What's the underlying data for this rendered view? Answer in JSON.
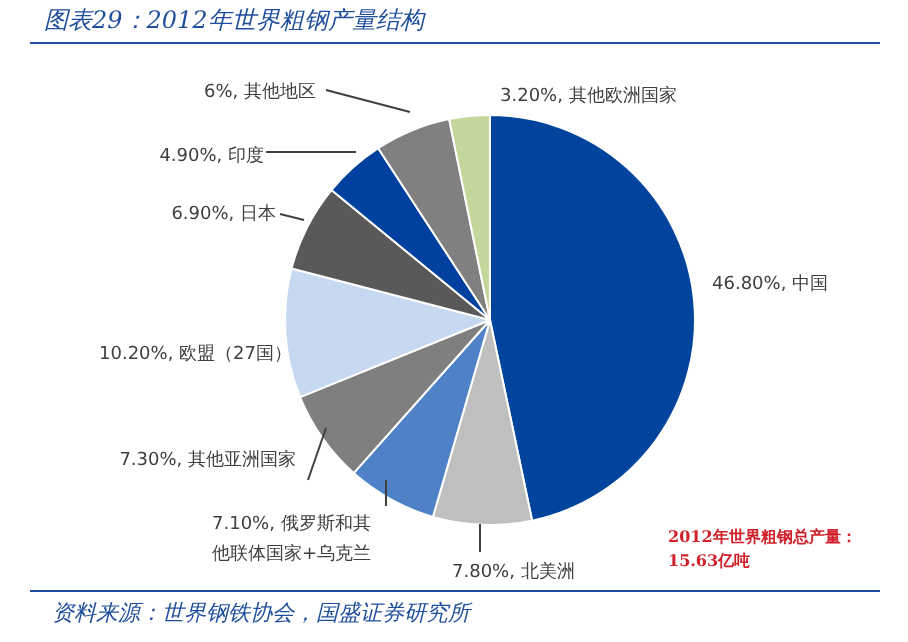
{
  "chart_data": {
    "type": "pie",
    "title": "图表29：2012年世界粗钢产量结构",
    "categories": [
      "中国",
      "北美洲",
      "俄罗斯和其他联体国家+乌克兰",
      "其他亚洲国家",
      "欧盟（27国）",
      "日本",
      "印度",
      "其他地区",
      "其他欧洲国家"
    ],
    "values": [
      46.8,
      7.8,
      7.1,
      7.3,
      10.2,
      6.9,
      4.9,
      6,
      3.2
    ],
    "value_labels": [
      "46.80%",
      "7.80%",
      "7.10%",
      "7.30%",
      "10.20%",
      "6.90%",
      "4.90%",
      "6%",
      "3.20%"
    ],
    "colors": [
      "#00449e",
      "#bfbfbf",
      "#4f81c7",
      "#7f7f7f",
      "#c6d9f0",
      "#595959",
      "#0041a0",
      "#808080",
      "#c3d69b"
    ],
    "annotations": [
      "2012年世界粗钢总产量：15.63亿吨",
      "资料来源：世界钢铁协会，国盛证券研究所"
    ]
  }
}
